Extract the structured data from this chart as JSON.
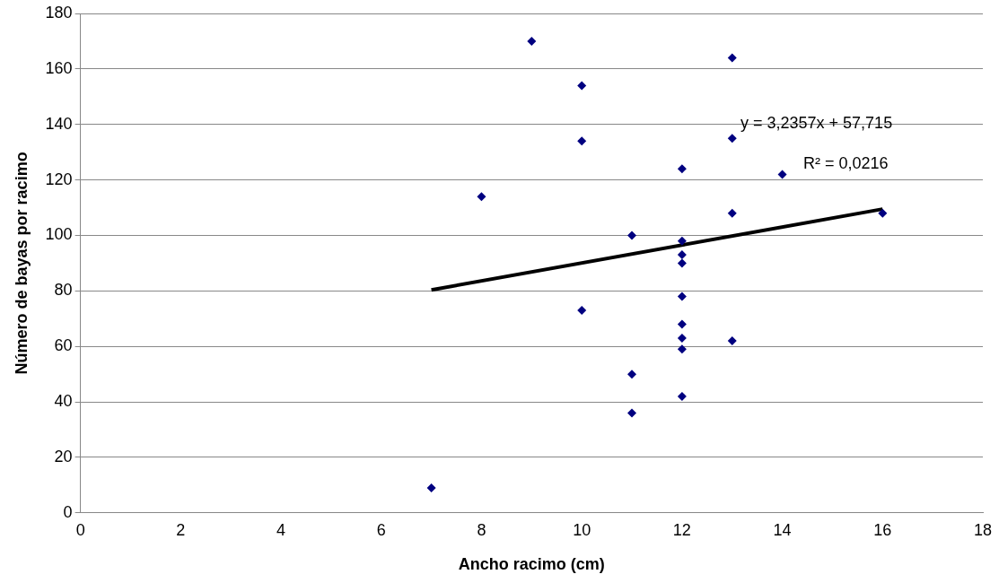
{
  "chart_data": {
    "type": "scatter",
    "xlabel": "Ancho racimo (cm)",
    "ylabel": "Número de bayas por racimo",
    "x": [
      7,
      8,
      9,
      10,
      10,
      10,
      11,
      11,
      11,
      12,
      12,
      12,
      12,
      12,
      12,
      12,
      12,
      12,
      13,
      13,
      13,
      13,
      14,
      16
    ],
    "series": [
      {
        "color": "#000080",
        "values": [
          9,
          114,
          170,
          154,
          134,
          73,
          100,
          50,
          36,
          124,
          98,
          93,
          90,
          78,
          68,
          63,
          59,
          42,
          164,
          135,
          108,
          62,
          122,
          108
        ]
      },
      {
        "type": "line",
        "color": "#000000",
        "x": [
          7,
          16
        ],
        "values": [
          80.365,
          109.486
        ],
        "marker": "none",
        "line_style": "solid"
      }
    ],
    "marker": "diamond",
    "xlim": [
      0,
      18
    ],
    "xticks": [
      0,
      2,
      4,
      6,
      8,
      10,
      12,
      14,
      16,
      18
    ],
    "ylim": [
      0,
      180
    ],
    "yticks": [
      0,
      20,
      40,
      60,
      80,
      100,
      120,
      140,
      160,
      180
    ],
    "grid": "y",
    "annotations": [
      "y = 3,2357x + 57,715",
      "R² = 0,0216"
    ]
  }
}
